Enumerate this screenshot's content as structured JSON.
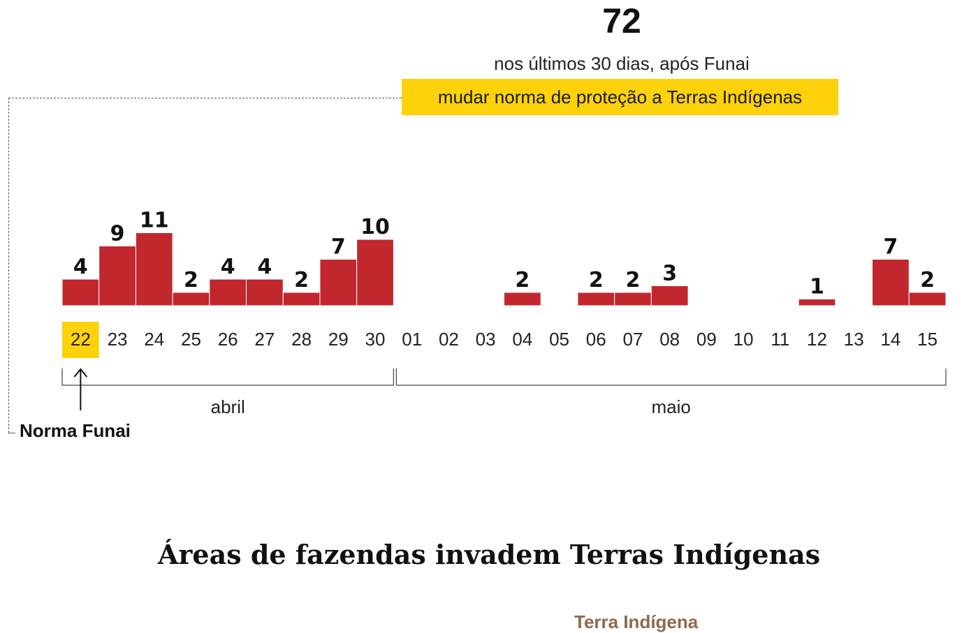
{
  "header": {
    "total": "72",
    "subtitle": "nos últimos 30 dias, após Funai",
    "highlight": "mudar norma de proteção a Terras Indígenas"
  },
  "annotation": {
    "label": "Norma Funai"
  },
  "section": {
    "title": "Áreas de fazendas invadem Terras Indígenas",
    "legend_peek": "Terra Indígena"
  },
  "colors": {
    "bar": "#c1272d",
    "highlight": "#fdd20a",
    "text": "#111111"
  },
  "chart_data": {
    "type": "bar",
    "title": "72",
    "categories": [
      "22",
      "23",
      "24",
      "25",
      "26",
      "27",
      "28",
      "29",
      "30",
      "01",
      "02",
      "03",
      "04",
      "05",
      "06",
      "07",
      "08",
      "09",
      "10",
      "11",
      "12",
      "13",
      "14",
      "15"
    ],
    "values": [
      4,
      9,
      11,
      2,
      4,
      4,
      2,
      7,
      10,
      0,
      0,
      0,
      2,
      0,
      2,
      2,
      3,
      0,
      0,
      0,
      1,
      0,
      7,
      2
    ],
    "highlighted_category": "22",
    "groups": [
      {
        "label": "abril",
        "from": 0,
        "to": 8
      },
      {
        "label": "maio",
        "from": 9,
        "to": 23
      }
    ],
    "xlabel": "",
    "ylabel": "",
    "ylim": [
      0,
      11
    ]
  }
}
